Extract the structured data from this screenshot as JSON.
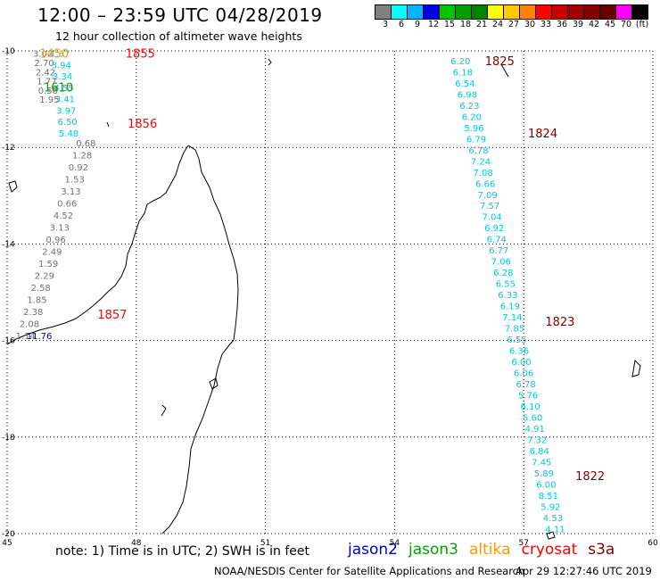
{
  "header": {
    "title": "12:00 – 23:59 UTC 04/28/2019",
    "subtitle": "12 hour collection of altimeter wave heights"
  },
  "legend": {
    "colors": [
      "#808080",
      "#00ffff",
      "#00b4ff",
      "#0000e6",
      "#00c800",
      "#00a000",
      "#008200",
      "#ffff00",
      "#ffc800",
      "#ff8200",
      "#ff0000",
      "#c80000",
      "#a00000",
      "#820000",
      "#640000",
      "#ff00ff",
      "#000000"
    ],
    "labels": [
      "3",
      "6",
      "9",
      "12",
      "15",
      "18",
      "21",
      "24",
      "27",
      "30",
      "33",
      "36",
      "39",
      "42",
      "45",
      "70",
      "(ft)"
    ]
  },
  "axes": {
    "x_ticks": [
      "45",
      "48",
      "51",
      "54",
      "57",
      "60"
    ],
    "y_ticks": [
      "-10",
      "-12",
      "-14",
      "-16",
      "-18",
      "-20"
    ]
  },
  "colors": {
    "jason2": "#0000cc",
    "jason3": "#00a000",
    "altika": "#ff9900",
    "cryosat": "#ff0000",
    "s3a": "#800000",
    "cyan": "#00c8e6",
    "gray": "#707070"
  },
  "map": {
    "lon_range": [
      45,
      60
    ],
    "lat_range": [
      -20,
      -10
    ],
    "pass_labels": [
      {
        "text": "1855",
        "lon": 47.75,
        "lat": -10.05,
        "color": "#ff0000"
      },
      {
        "text": "1450",
        "lon": 45.75,
        "lat": -10.05,
        "color": "#ff9900"
      },
      {
        "text": "1610",
        "lon": 45.85,
        "lat": -10.75,
        "color": "#00a000"
      },
      {
        "text": "1856",
        "lon": 47.8,
        "lat": -11.5,
        "color": "#ff0000"
      },
      {
        "text": "1857",
        "lon": 47.1,
        "lat": -15.45,
        "color": "#ff0000"
      },
      {
        "text": "1825",
        "lon": 56.1,
        "lat": -10.2,
        "color": "#800000"
      },
      {
        "text": "1824",
        "lon": 57.1,
        "lat": -11.7,
        "color": "#800000"
      },
      {
        "text": "1823",
        "lon": 57.5,
        "lat": -15.6,
        "color": "#800000"
      },
      {
        "text": "1822",
        "lon": 58.2,
        "lat": -18.8,
        "color": "#800000"
      }
    ],
    "tracks": [
      {
        "name": "s3a-track-a",
        "color": "#00c8e6",
        "lon_start": 46.0,
        "lon_end": 46.2,
        "lat_start": -10.05,
        "lat_end": -11.7,
        "values": [
          "1.37",
          "3.94",
          "3.34",
          "4.55",
          "3.41",
          "3.97",
          "6.50",
          "5.48"
        ]
      },
      {
        "name": "cryosat-track-a",
        "color": "#707070",
        "lon_start": 45.6,
        "lon_end": 45.75,
        "lat_start": -10.05,
        "lat_end": -11.0,
        "values": [
          "3.02",
          "2.70",
          "2.42",
          "1.77",
          "0.58",
          "1.95"
        ]
      },
      {
        "name": "cryosat-track-b",
        "color": "#707070",
        "lon_start": 46.6,
        "lon_end": 45.2,
        "lat_start": -11.9,
        "lat_end": -15.9,
        "values": [
          "0.68",
          "1.28",
          "0.92",
          "1.53",
          "3.13",
          "0.66",
          "4.52",
          "3.13",
          "0.96",
          "2.49",
          "1.59",
          "2.29",
          "2.58",
          "1.85",
          "2.38",
          "2.08",
          "1.14"
        ]
      },
      {
        "name": "s3a-track-b",
        "color": "#00c8e6",
        "lon_start": 55.3,
        "lon_end": 57.5,
        "lat_start": -10.2,
        "lat_end": -19.9,
        "values": [
          "6.20",
          "6.18",
          "6.54",
          "6.98",
          "6.23",
          "6.20",
          "5.96",
          "6.79",
          "6.78",
          "7.24",
          "7.08",
          "6.66",
          "7.09",
          "7.57",
          "7.04",
          "6.92",
          "6.74",
          "6.77",
          "7.06",
          "6.28",
          "6.55",
          "6.33",
          "6.19",
          "7.14",
          "7.85",
          "6.55",
          "6.36",
          "6.00",
          "6.06",
          "6.78",
          "5.76",
          "6.10",
          "5.60",
          "4.91",
          "7.32",
          "6.84",
          "7.45",
          "5.89",
          "6.00",
          "8.51",
          "5.92",
          "4.53",
          "4.11"
        ]
      }
    ],
    "extra_values": [
      {
        "text": "11.76",
        "lon": 45.45,
        "lat": -15.9,
        "color": "#0000cc"
      }
    ]
  },
  "notes": {
    "note": "note:  1) Time is in UTC;  2) SWH is in feet",
    "satellites": [
      {
        "name": "jason2",
        "color": "#0000cc"
      },
      {
        "name": "jason3",
        "color": "#00a000"
      },
      {
        "name": "altika",
        "color": "#ff9900"
      },
      {
        "name": "cryosat",
        "color": "#ff0000"
      },
      {
        "name": "s3a",
        "color": "#800000"
      }
    ]
  },
  "footer": {
    "credit": "NOAA/NESDIS Center for Satellite Applications and Research",
    "timestamp": "Apr 29 12:27:46 UTC 2019"
  }
}
